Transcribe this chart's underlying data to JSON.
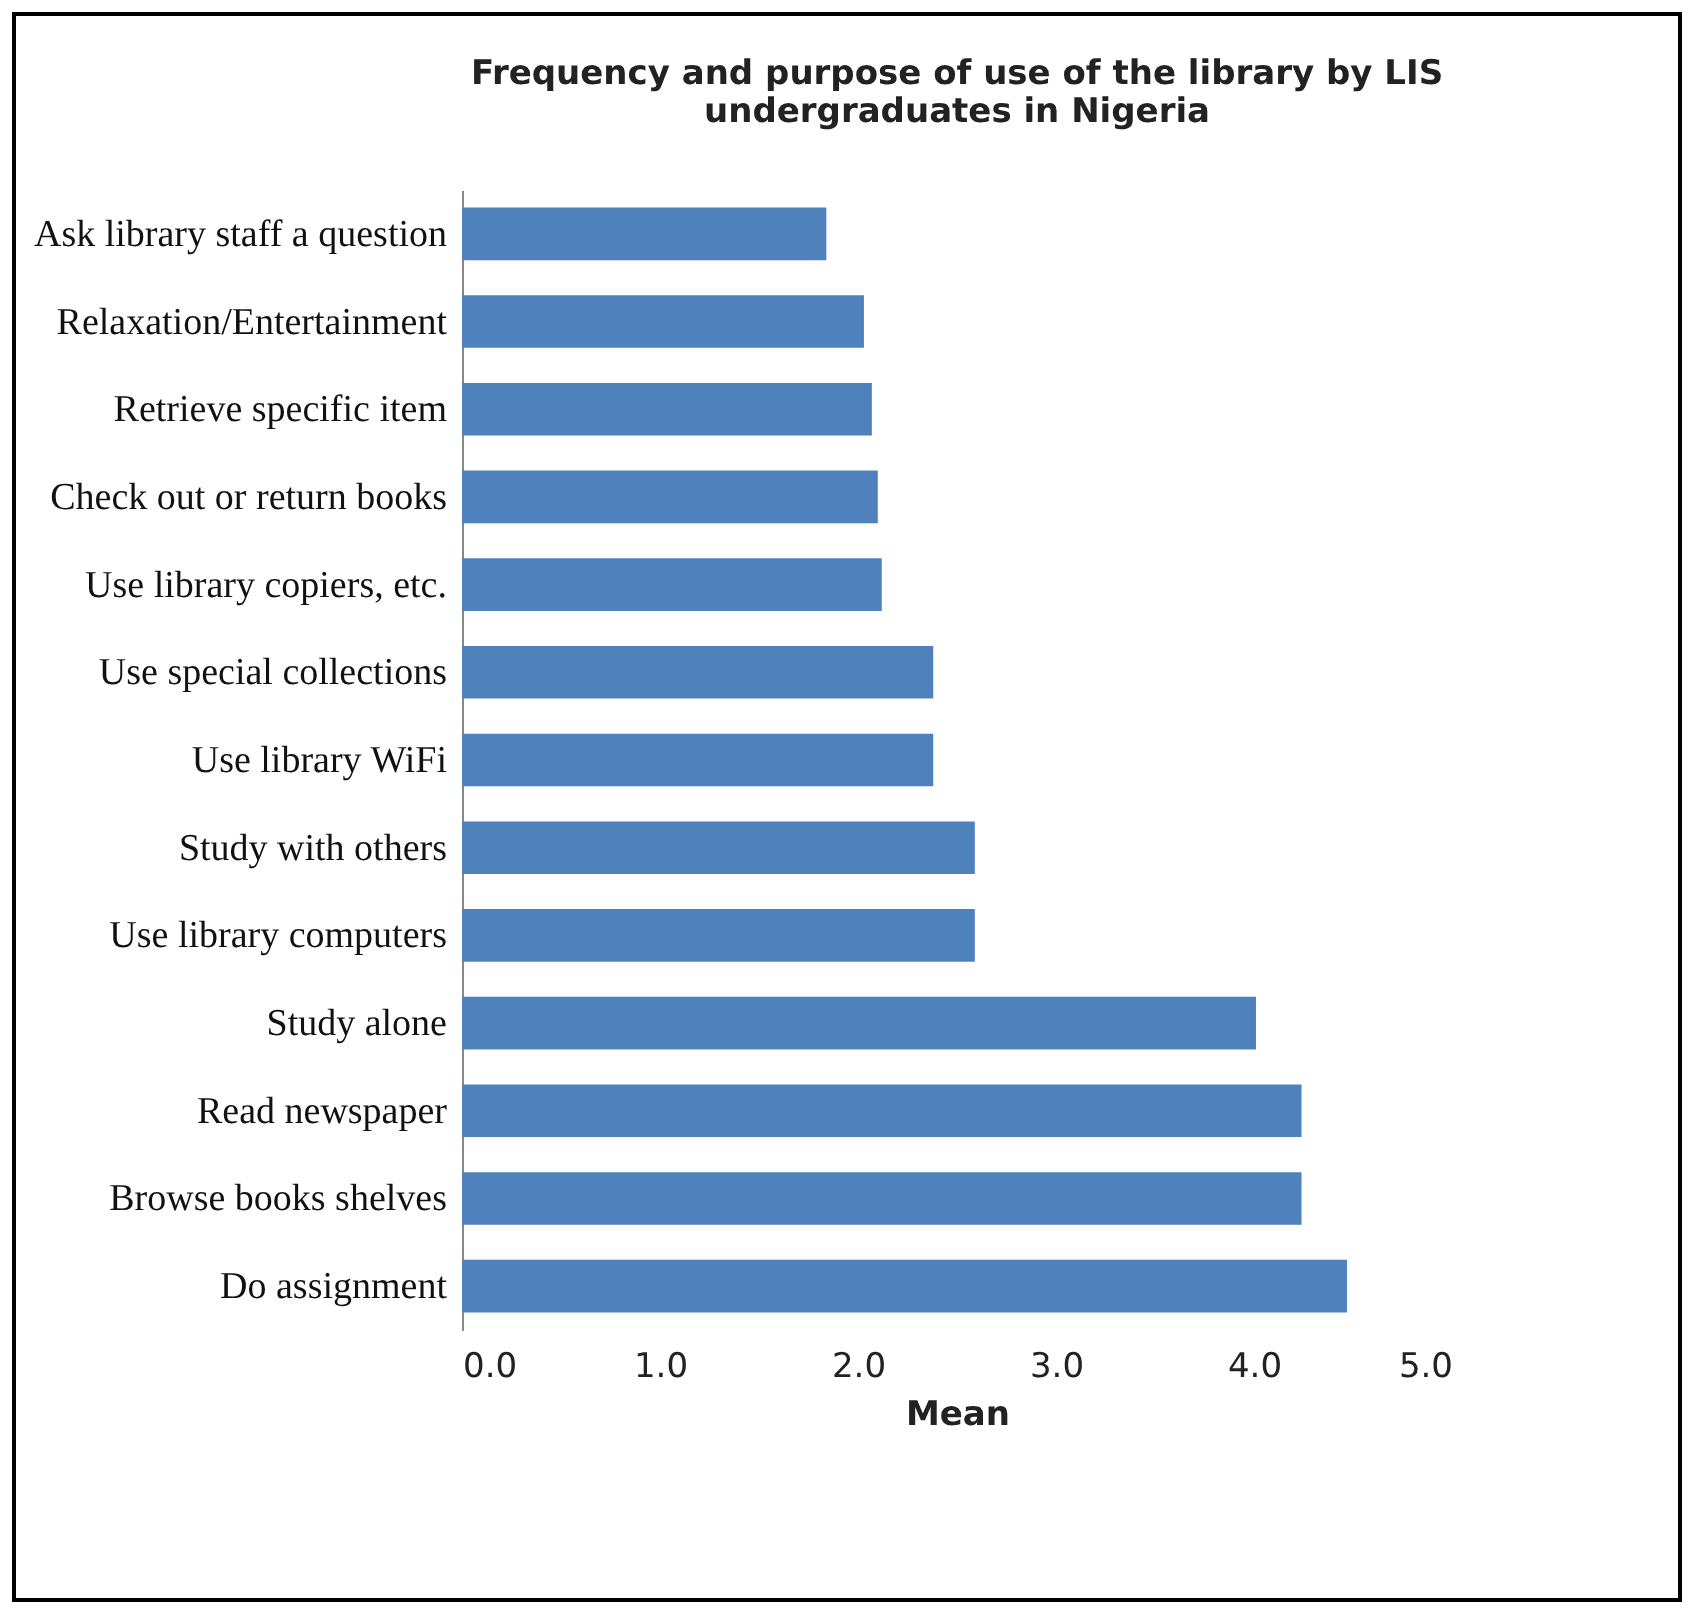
{
  "chart_data": {
    "type": "bar",
    "orientation": "horizontal",
    "title": "Frequency and purpose of use of the library by LIS undergraduates in Nigeria",
    "xlabel": "Mean",
    "categories": [
      "Ask library staff a question",
      "Relaxation/Entertainment",
      "Retrieve specific item",
      "Check out or return books",
      "Use library copiers, etc.",
      "Use special collections",
      "Use library WiFi",
      "Study with others",
      "Use library computers",
      "Study alone",
      "Read newspaper",
      "Browse  books shelves",
      "Do assignment"
    ],
    "values": [
      1.84,
      2.03,
      2.07,
      2.1,
      2.12,
      2.38,
      2.38,
      2.59,
      2.59,
      4.01,
      4.24,
      4.24,
      4.47
    ],
    "color": "#4f81bd",
    "xlim": [
      0,
      5
    ],
    "xticks": [
      {
        "value": 0,
        "label": "0.0"
      },
      {
        "value": 1,
        "label": "1.0"
      },
      {
        "value": 2,
        "label": "2.0"
      },
      {
        "value": 3,
        "label": "3.0"
      },
      {
        "value": 4,
        "label": "4.0"
      },
      {
        "value": 5,
        "label": "5.0"
      }
    ],
    "grid": false
  }
}
